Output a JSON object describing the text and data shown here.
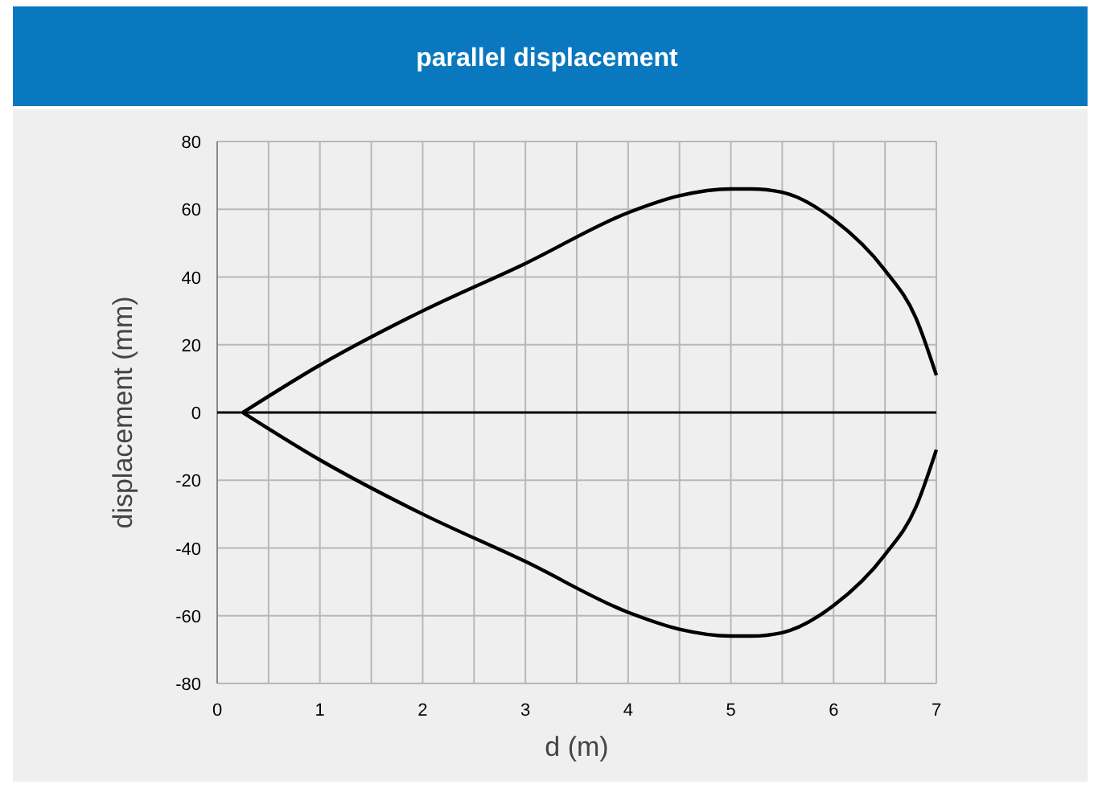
{
  "chart_data": {
    "type": "line",
    "title": "parallel displacement",
    "xlabel": "d (m)",
    "ylabel": "displacement (mm)",
    "xlim": [
      0,
      7
    ],
    "ylim": [
      -80,
      80
    ],
    "xticks": [
      0,
      {
        "value": 0.5,
        "label": null
      },
      1,
      {
        "value": 1.5,
        "label": null
      },
      2,
      {
        "value": 2.5,
        "label": null
      },
      3,
      {
        "value": 3.5,
        "label": null
      },
      4,
      {
        "value": 4.5,
        "label": null
      },
      5,
      {
        "value": 5.5,
        "label": null
      },
      6,
      {
        "value": 6.5,
        "label": null
      },
      7
    ],
    "yticks": [
      -80,
      -60,
      -40,
      -20,
      0,
      20,
      40,
      60,
      80
    ],
    "grid": true,
    "line_style": "solid",
    "series": [
      {
        "color": "#000000",
        "x": [
          0.25,
          1,
          2,
          3,
          4,
          4.5,
          5,
          5.2,
          5.5,
          6,
          6.5,
          6.8,
          7
        ],
        "values": [
          0,
          14,
          30,
          44,
          59,
          64,
          66,
          66,
          65,
          57,
          42,
          28,
          11
        ]
      },
      {
        "color": "#000000",
        "x": [
          0.25,
          1,
          2,
          3,
          4,
          4.5,
          5,
          5.2,
          5.5,
          6,
          6.5,
          6.8,
          7
        ],
        "values": [
          0,
          -14,
          -30,
          -44,
          -59,
          -64,
          -66,
          -66,
          -65,
          -57,
          -42,
          -28,
          -11
        ]
      }
    ]
  }
}
